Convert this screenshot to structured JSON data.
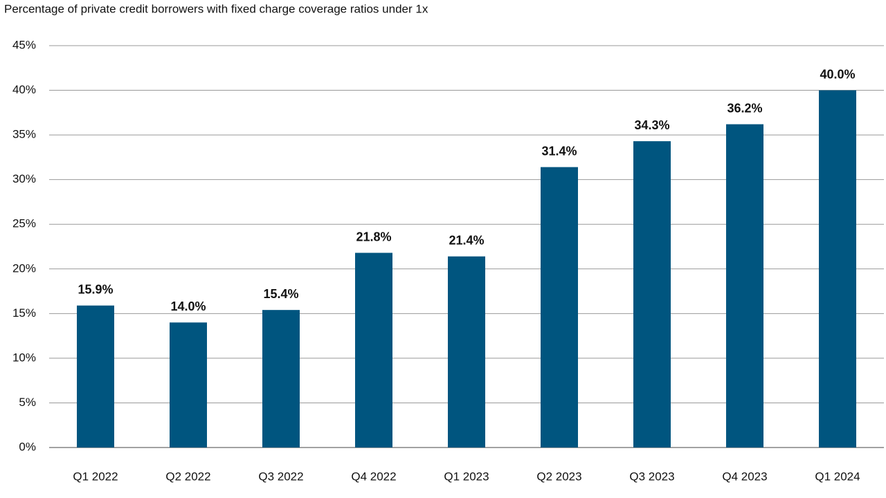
{
  "chart_data": {
    "type": "bar",
    "title": "Percentage of private credit borrowers with fixed charge coverage ratios under 1x",
    "categories": [
      "Q1 2022",
      "Q2 2022",
      "Q3 2022",
      "Q4 2022",
      "Q1 2023",
      "Q2 2023",
      "Q3 2023",
      "Q4 2023",
      "Q1 2024"
    ],
    "values": [
      15.9,
      14.0,
      15.4,
      21.8,
      21.4,
      31.4,
      34.3,
      36.2,
      40.0
    ],
    "value_labels": [
      "15.9%",
      "14.0%",
      "15.4%",
      "21.8%",
      "21.4%",
      "31.4%",
      "34.3%",
      "36.2%",
      "40.0%"
    ],
    "color": "#00557f",
    "ylim": [
      0,
      45
    ],
    "yticks": [
      {
        "value": 0,
        "label": "0%"
      },
      {
        "value": 5,
        "label": "5%"
      },
      {
        "value": 10,
        "label": "10%"
      },
      {
        "value": 15,
        "label": "15%"
      },
      {
        "value": 20,
        "label": "20%"
      },
      {
        "value": 25,
        "label": "25%"
      },
      {
        "value": 30,
        "label": "30%"
      },
      {
        "value": 35,
        "label": "35%"
      },
      {
        "value": 40,
        "label": "40%"
      },
      {
        "value": 45,
        "label": "45%"
      }
    ],
    "grid": true
  }
}
